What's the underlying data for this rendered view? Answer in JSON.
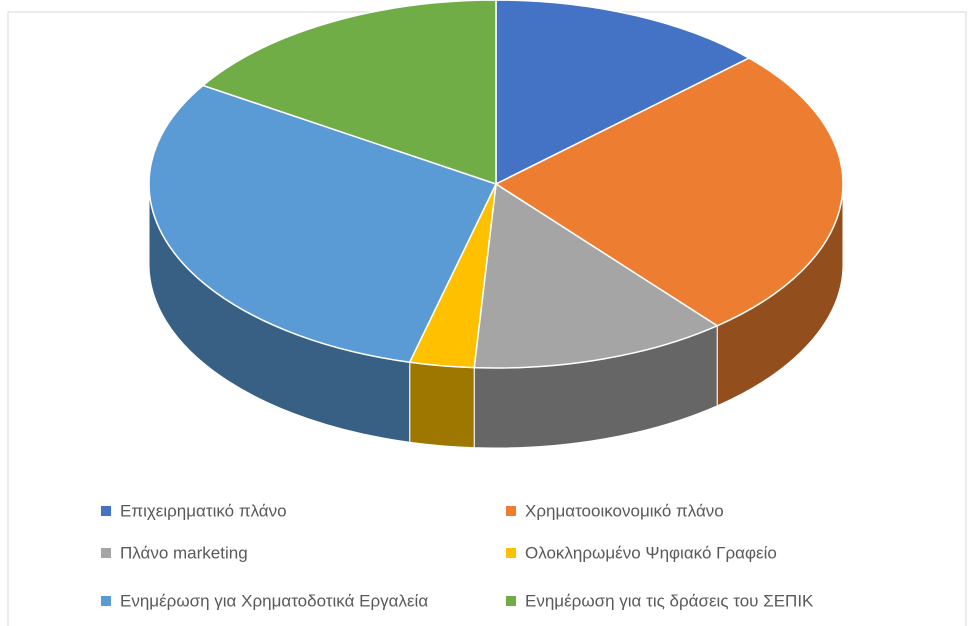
{
  "chart_data": {
    "type": "pie",
    "three_d": true,
    "categories": [
      "Επιχειρηματικό πλάνο",
      "Χρηματοοικονομικό πλάνο",
      "Πλάνο marketing",
      "Ολοκληρωμένο Ψηφιακό Γραφείο",
      "Ενημέρωση για Χρηματοδοτικά Εργαλεία",
      "Ενημέρωση για τις δράσεις του ΣΕΠΙΚ"
    ],
    "values": [
      13,
      26,
      12,
      3,
      30,
      16
    ],
    "colors": [
      "#4472c4",
      "#ed7d31",
      "#a5a5a5",
      "#ffc000",
      "#5b9bd5",
      "#70ad47"
    ],
    "legend": "bottom"
  }
}
